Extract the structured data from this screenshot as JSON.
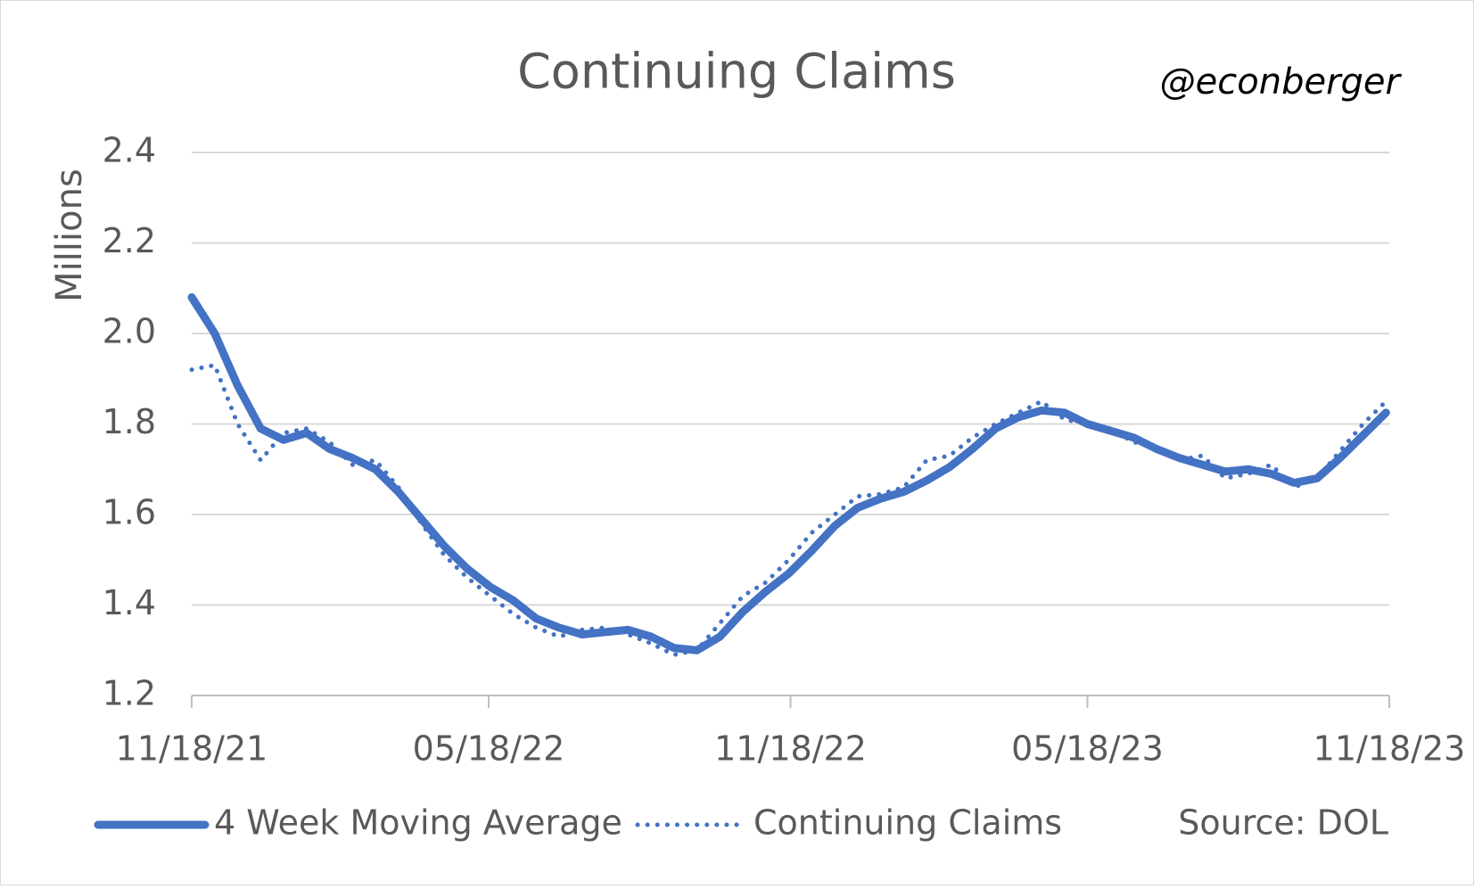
{
  "chart_data": {
    "type": "line",
    "title": "Continuing Claims",
    "annotation": "@econberger",
    "source": "Source: DOL",
    "ylabel": "Millions",
    "x": [
      "11/18/21",
      "12/02/21",
      "12/16/21",
      "12/30/21",
      "01/13/22",
      "01/27/22",
      "02/10/22",
      "02/24/22",
      "03/10/22",
      "03/24/22",
      "04/07/22",
      "04/21/22",
      "05/05/22",
      "05/19/22",
      "06/02/22",
      "06/16/22",
      "06/30/22",
      "07/14/22",
      "07/28/22",
      "08/11/22",
      "08/25/22",
      "09/08/22",
      "09/22/22",
      "10/06/22",
      "10/20/22",
      "11/03/22",
      "11/17/22",
      "12/01/22",
      "12/15/22",
      "12/29/22",
      "01/12/23",
      "01/26/23",
      "02/09/23",
      "02/23/23",
      "03/09/23",
      "03/23/23",
      "04/06/23",
      "04/20/23",
      "05/04/23",
      "05/18/23",
      "06/01/23",
      "06/15/23",
      "06/29/23",
      "07/13/23",
      "07/27/23",
      "08/10/23",
      "08/24/23",
      "09/07/23",
      "09/21/23",
      "10/05/23",
      "10/19/23",
      "11/02/23",
      "11/16/23"
    ],
    "series": [
      {
        "name": "4 Week Moving Average",
        "color": "#4472c4",
        "style": "solid",
        "values": [
          2.08,
          2.0,
          1.885,
          1.79,
          1.765,
          1.78,
          1.745,
          1.725,
          1.7,
          1.65,
          1.59,
          1.53,
          1.48,
          1.44,
          1.41,
          1.37,
          1.35,
          1.335,
          1.34,
          1.345,
          1.33,
          1.305,
          1.3,
          1.33,
          1.385,
          1.43,
          1.47,
          1.52,
          1.575,
          1.615,
          1.635,
          1.65,
          1.675,
          1.705,
          1.745,
          1.79,
          1.815,
          1.83,
          1.825,
          1.8,
          1.785,
          1.77,
          1.745,
          1.725,
          1.71,
          1.695,
          1.7,
          1.69,
          1.67,
          1.68,
          1.725,
          1.775,
          1.825
        ]
      },
      {
        "name": "Continuing Claims",
        "color": "#4472c4",
        "style": "dotted",
        "values": [
          1.92,
          1.93,
          1.8,
          1.72,
          1.78,
          1.79,
          1.76,
          1.71,
          1.72,
          1.66,
          1.58,
          1.51,
          1.46,
          1.42,
          1.38,
          1.35,
          1.33,
          1.345,
          1.35,
          1.335,
          1.315,
          1.29,
          1.3,
          1.36,
          1.42,
          1.45,
          1.5,
          1.56,
          1.6,
          1.64,
          1.645,
          1.66,
          1.72,
          1.73,
          1.77,
          1.8,
          1.825,
          1.85,
          1.81,
          1.8,
          1.79,
          1.76,
          1.75,
          1.72,
          1.73,
          1.68,
          1.69,
          1.71,
          1.66,
          1.68,
          1.74,
          1.8,
          1.85
        ]
      }
    ],
    "xlim": [
      "11/18/21",
      "11/18/23"
    ],
    "xticks": [
      "11/18/21",
      "05/18/22",
      "11/18/22",
      "05/18/23",
      "11/18/23"
    ],
    "ylim": [
      1.2,
      2.4
    ],
    "yticks": [
      1.2,
      1.4,
      1.6,
      1.8,
      {
        "value": 2,
        "label": "2.0"
      },
      2.2,
      2.4
    ],
    "grid": true
  }
}
